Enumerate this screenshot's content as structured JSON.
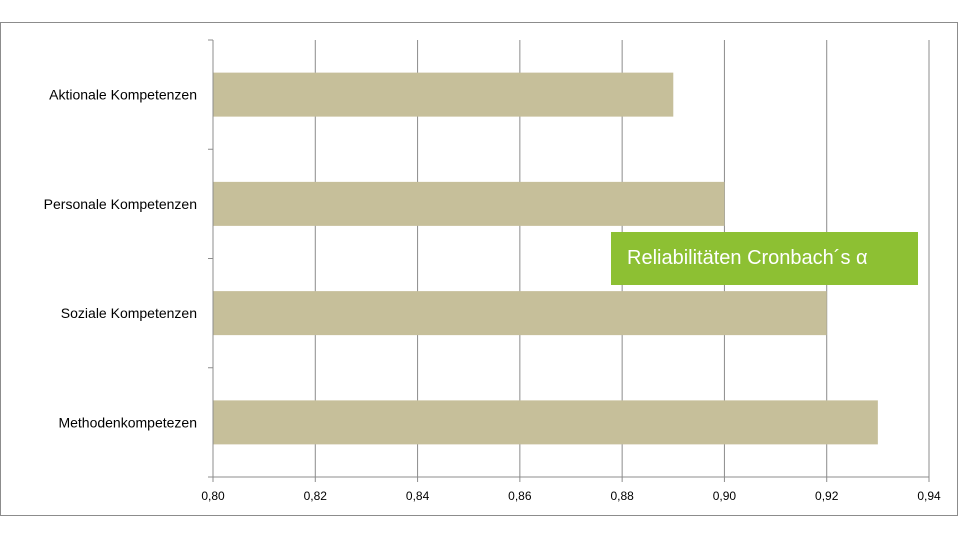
{
  "chart_data": {
    "type": "bar",
    "orientation": "horizontal",
    "categories": [
      "Aktionale Kompetenzen",
      "Personale Kompetenzen",
      "Soziale Kompetenzen",
      "Methodenkompetezen"
    ],
    "values": [
      0.89,
      0.9,
      0.92,
      0.93
    ],
    "xlim": [
      0.8,
      0.94
    ],
    "xticks": [
      "0,80",
      "0,82",
      "0,84",
      "0,86",
      "0,88",
      "0,90",
      "0,92",
      "0,94"
    ],
    "grid": true,
    "bar_color": "#c6bf9a"
  },
  "annotation": {
    "text": "Reliabilitäten Cronbach´s α",
    "background": "#8dc033"
  }
}
